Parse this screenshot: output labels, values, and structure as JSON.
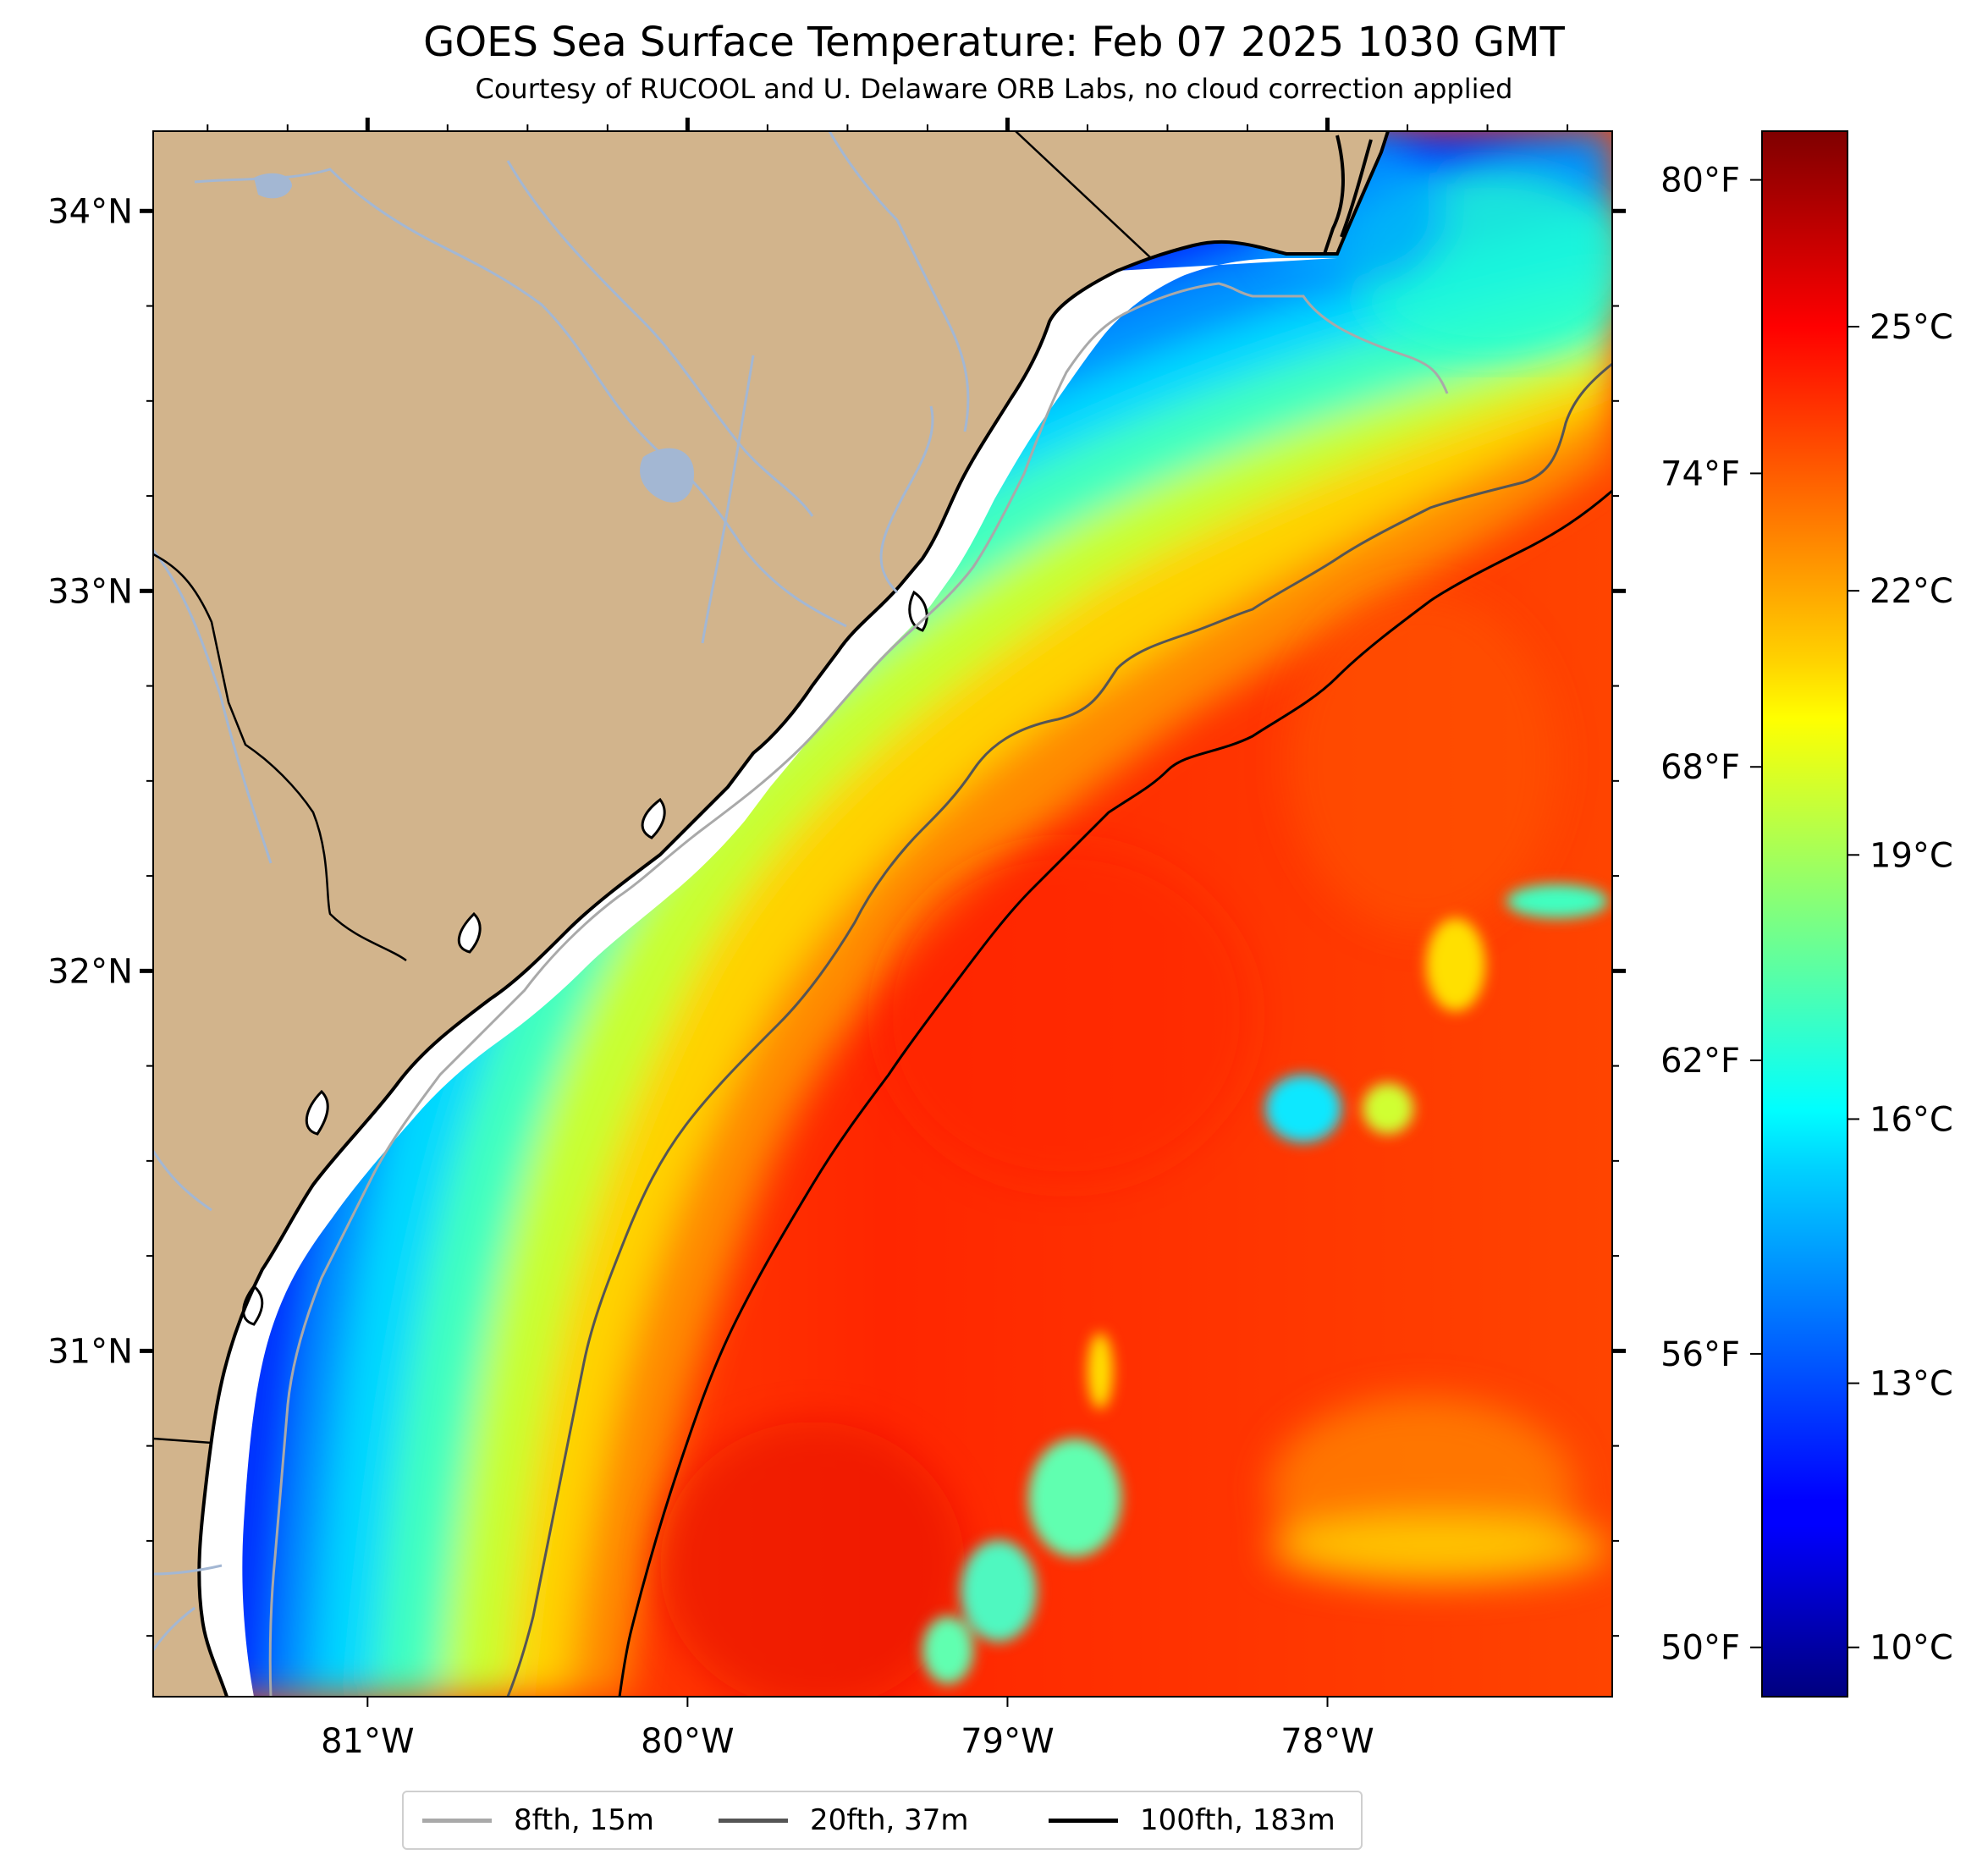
{
  "title": "GOES Sea Surface Temperature: Feb 07 2025 1030 GMT",
  "subtitle": "Courtesy of RUCOOL and U. Delaware ORB Labs, no cloud correction applied",
  "map": {
    "lon_range": [
      -81.67,
      -77.11
    ],
    "lat_range": [
      30.09,
      34.21
    ],
    "lon_ticks": [
      {
        "value": -81,
        "label": "81°W"
      },
      {
        "value": -80,
        "label": "80°W"
      },
      {
        "value": -79,
        "label": "79°W"
      },
      {
        "value": -78,
        "label": "78°W"
      }
    ],
    "lat_ticks": [
      {
        "value": 34,
        "label": "34°N"
      },
      {
        "value": 33,
        "label": "33°N"
      },
      {
        "value": 32,
        "label": "32°N"
      },
      {
        "value": 31,
        "label": "31°N"
      }
    ],
    "land_color": "#d2b48c",
    "river_color": "#a3b7d3"
  },
  "colorbar": {
    "colormap": "jet",
    "celsius_range": [
      9.44,
      27.22
    ],
    "celsius_ticks": [
      {
        "value": 10,
        "label": "10°C"
      },
      {
        "value": 13,
        "label": "13°C"
      },
      {
        "value": 16,
        "label": "16°C"
      },
      {
        "value": 19,
        "label": "19°C"
      },
      {
        "value": 22,
        "label": "22°C"
      },
      {
        "value": 25,
        "label": "25°C"
      }
    ],
    "fahrenheit_ticks": [
      {
        "value": 50,
        "label": "50°F"
      },
      {
        "value": 56,
        "label": "56°F"
      },
      {
        "value": 62,
        "label": "62°F"
      },
      {
        "value": 68,
        "label": "68°F"
      },
      {
        "value": 74,
        "label": "74°F"
      },
      {
        "value": 80,
        "label": "80°F"
      }
    ]
  },
  "legend": [
    {
      "label": "8fth, 15m",
      "color": "#a9a9a9"
    },
    {
      "label": "20fth, 37m",
      "color": "#555555"
    },
    {
      "label": "100fth, 183m",
      "color": "#000000"
    }
  ]
}
